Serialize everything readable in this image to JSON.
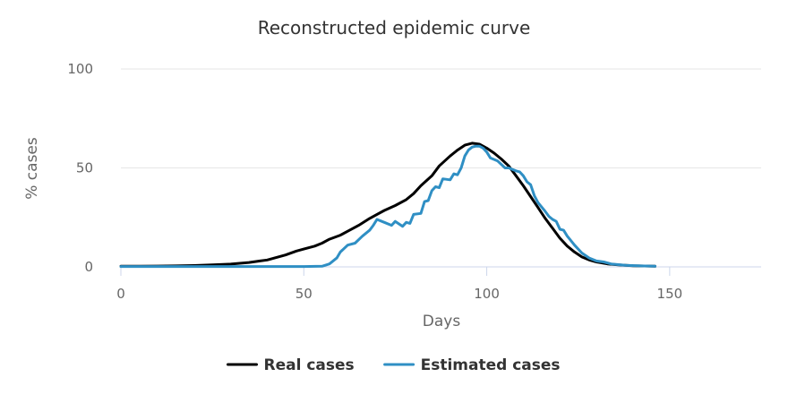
{
  "chart_data": {
    "type": "line",
    "title": "Reconstructed epidemic curve",
    "xlabel": "Days",
    "ylabel": "% cases",
    "xlim": [
      0,
      175
    ],
    "ylim": [
      0,
      100
    ],
    "x_ticks": [
      0,
      50,
      100,
      150
    ],
    "y_ticks": [
      0,
      50,
      100
    ],
    "grid": true,
    "legend_position": "bottom-center",
    "series": [
      {
        "name": "Real cases",
        "color": "#000000",
        "points": [
          [
            0,
            0.3
          ],
          [
            5,
            0.3
          ],
          [
            10,
            0.4
          ],
          [
            15,
            0.5
          ],
          [
            20,
            0.7
          ],
          [
            25,
            1.0
          ],
          [
            30,
            1.4
          ],
          [
            35,
            2.2
          ],
          [
            38,
            3.0
          ],
          [
            40,
            3.5
          ],
          [
            42,
            4.5
          ],
          [
            45,
            6.0
          ],
          [
            48,
            8.0
          ],
          [
            50,
            9.0
          ],
          [
            53,
            10.5
          ],
          [
            55,
            12.0
          ],
          [
            57,
            14.0
          ],
          [
            60,
            16.0
          ],
          [
            62,
            18.0
          ],
          [
            65,
            21.0
          ],
          [
            68,
            24.5
          ],
          [
            70,
            26.5
          ],
          [
            72,
            28.5
          ],
          [
            75,
            31.0
          ],
          [
            78,
            34.0
          ],
          [
            80,
            37.0
          ],
          [
            82,
            41.0
          ],
          [
            85,
            46.0
          ],
          [
            87,
            51.0
          ],
          [
            90,
            56.0
          ],
          [
            92,
            59.0
          ],
          [
            94,
            61.5
          ],
          [
            96,
            62.5
          ],
          [
            98,
            62.0
          ],
          [
            100,
            60.0
          ],
          [
            102,
            57.5
          ],
          [
            104,
            54.5
          ],
          [
            106,
            51.0
          ],
          [
            108,
            46.0
          ],
          [
            110,
            41.0
          ],
          [
            112,
            35.5
          ],
          [
            114,
            30.0
          ],
          [
            116,
            24.5
          ],
          [
            118,
            19.5
          ],
          [
            120,
            14.5
          ],
          [
            122,
            10.5
          ],
          [
            124,
            7.5
          ],
          [
            126,
            5.0
          ],
          [
            128,
            3.5
          ],
          [
            130,
            2.5
          ],
          [
            133,
            1.5
          ],
          [
            136,
            1.0
          ],
          [
            140,
            0.6
          ],
          [
            146,
            0.3
          ]
        ]
      },
      {
        "name": "Estimated cases",
        "color": "#2f8fc4",
        "points": [
          [
            0,
            0.2
          ],
          [
            10,
            0.2
          ],
          [
            20,
            0.2
          ],
          [
            30,
            0.2
          ],
          [
            40,
            0.2
          ],
          [
            50,
            0.2
          ],
          [
            55,
            0.3
          ],
          [
            57,
            1.5
          ],
          [
            59,
            4.5
          ],
          [
            60,
            7.5
          ],
          [
            62,
            11.0
          ],
          [
            64,
            12.0
          ],
          [
            66,
            15.5
          ],
          [
            68,
            18.5
          ],
          [
            69,
            21.0
          ],
          [
            70,
            24.0
          ],
          [
            72,
            22.5
          ],
          [
            74,
            21.0
          ],
          [
            75,
            23.0
          ],
          [
            77,
            20.5
          ],
          [
            78,
            22.5
          ],
          [
            79,
            22.0
          ],
          [
            80,
            26.5
          ],
          [
            82,
            27.0
          ],
          [
            83,
            33.0
          ],
          [
            84,
            33.5
          ],
          [
            85,
            38.5
          ],
          [
            86,
            40.5
          ],
          [
            87,
            40.0
          ],
          [
            88,
            44.5
          ],
          [
            90,
            44.0
          ],
          [
            91,
            47.0
          ],
          [
            92,
            46.5
          ],
          [
            93,
            50.0
          ],
          [
            94,
            56.0
          ],
          [
            95,
            59.0
          ],
          [
            96,
            60.5
          ],
          [
            97,
            61.0
          ],
          [
            98,
            61.0
          ],
          [
            99,
            60.0
          ],
          [
            100,
            58.0
          ],
          [
            101,
            55.0
          ],
          [
            103,
            53.5
          ],
          [
            105,
            50.0
          ],
          [
            106,
            50.0
          ],
          [
            108,
            48.5
          ],
          [
            109,
            48.0
          ],
          [
            110,
            46.0
          ],
          [
            111,
            43.0
          ],
          [
            112,
            41.5
          ],
          [
            113,
            36.0
          ],
          [
            114,
            32.5
          ],
          [
            116,
            28.0
          ],
          [
            117,
            25.5
          ],
          [
            118,
            24.0
          ],
          [
            119,
            23.0
          ],
          [
            120,
            19.0
          ],
          [
            121,
            18.5
          ],
          [
            122,
            15.5
          ],
          [
            124,
            11.0
          ],
          [
            126,
            7.0
          ],
          [
            128,
            4.5
          ],
          [
            130,
            3.0
          ],
          [
            132,
            2.5
          ],
          [
            134,
            1.5
          ],
          [
            138,
            0.8
          ],
          [
            142,
            0.5
          ],
          [
            146,
            0.3
          ]
        ]
      }
    ]
  }
}
